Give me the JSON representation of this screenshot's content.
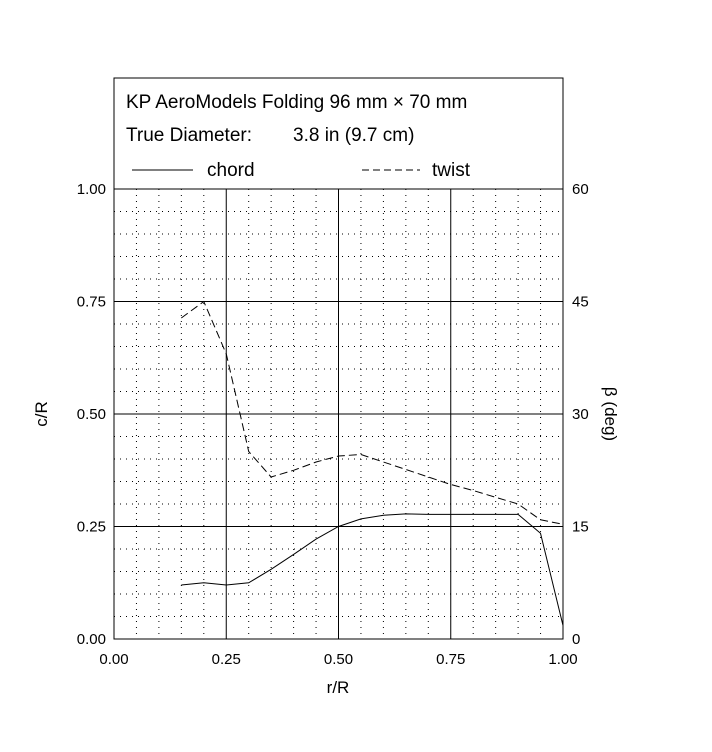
{
  "chart_data": {
    "type": "line",
    "header": {
      "title": "KP AeroModels Folding 96 mm × 70 mm",
      "diameter_label": "True Diameter:",
      "diameter_value": "3.8 in (9.7 cm)"
    },
    "xlabel": "r/R",
    "ylabel_left": "c/R",
    "ylabel_right": "β (deg)",
    "xlim": [
      0,
      1
    ],
    "ylim_left": [
      0,
      1
    ],
    "ylim_right": [
      0,
      60
    ],
    "x_ticks": [
      "0.00",
      "0.25",
      "0.50",
      "0.75",
      "1.00"
    ],
    "y_left_ticks": [
      "0.00",
      "0.25",
      "0.50",
      "0.75",
      "1.00"
    ],
    "y_right_ticks": [
      "0",
      "15",
      "30",
      "45",
      "60"
    ],
    "grid": true,
    "legend_position": "top",
    "series": [
      {
        "name": "chord",
        "axis": "left",
        "style": "solid",
        "x": [
          0.15,
          0.2,
          0.25,
          0.3,
          0.35,
          0.4,
          0.45,
          0.5,
          0.55,
          0.6,
          0.65,
          0.7,
          0.75,
          0.8,
          0.85,
          0.9,
          0.95,
          1.0
        ],
        "y": [
          0.12,
          0.125,
          0.12,
          0.125,
          0.155,
          0.188,
          0.222,
          0.25,
          0.267,
          0.275,
          0.278,
          0.277,
          0.277,
          0.277,
          0.277,
          0.277,
          0.235,
          0.03
        ]
      },
      {
        "name": "twist",
        "axis": "right",
        "style": "dashed",
        "x": [
          0.15,
          0.2,
          0.25,
          0.3,
          0.35,
          0.4,
          0.45,
          0.5,
          0.55,
          0.6,
          0.65,
          0.7,
          0.75,
          0.8,
          0.85,
          0.9,
          0.95,
          1.0
        ],
        "y": [
          42.8,
          45.0,
          38.0,
          25.0,
          21.6,
          22.5,
          23.6,
          24.4,
          24.6,
          23.6,
          22.6,
          21.6,
          20.6,
          19.8,
          18.9,
          18.0,
          15.9,
          15.3
        ]
      }
    ]
  }
}
